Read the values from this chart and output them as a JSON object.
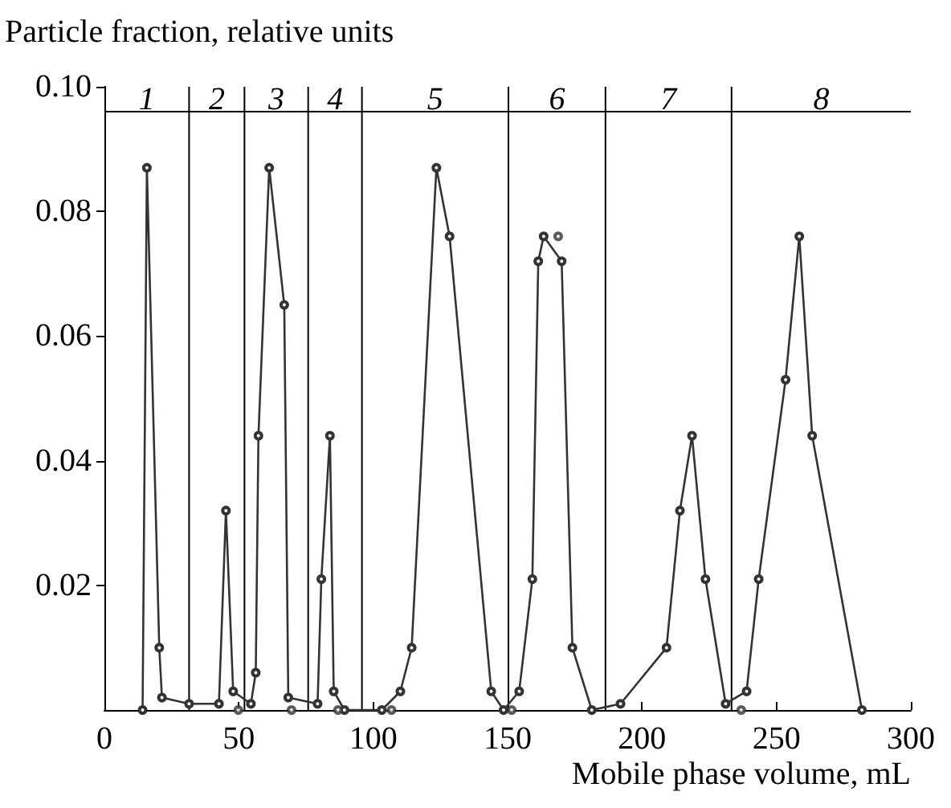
{
  "chart_data": {
    "type": "line",
    "xlabel": "Mobile phase volume, mL",
    "ylabel": "Particle fraction, relative units",
    "xlim": [
      0,
      300
    ],
    "xticks": [
      0,
      50,
      100,
      150,
      200,
      250,
      300
    ],
    "ylim": [
      0,
      0.1
    ],
    "yticks": [
      0.02,
      0.04,
      0.06,
      0.08,
      {
        "value": 0.1,
        "label": "0.10"
      }
    ],
    "marker": "circle",
    "line_style": "solid",
    "series": [
      {
        "color": "#333333",
        "x": [
          14.2,
          15.8,
          20.4,
          21.4,
          31.5,
          42.6,
          45.2,
          47.9,
          54.5,
          56.3,
          57.3,
          61.3,
          66.9,
          68.4,
          79.3,
          80.7,
          83.9,
          85.3,
          89.3,
          103.2,
          110.1,
          114.3,
          123.5,
          128.4,
          143.9,
          148.5,
          154.3,
          159.2,
          161.4,
          163.4,
          170.1,
          174.1,
          181.3,
          192.0,
          209.1,
          214.1,
          218.6,
          223.6,
          231.1,
          238.9,
          243.4,
          253.4,
          258.5,
          263.3,
          281.8
        ],
        "values": [
          0,
          0.087,
          0.01,
          0.002,
          0.001,
          0.001,
          0.032,
          0.003,
          0.001,
          0.006,
          0.044,
          0.087,
          0.065,
          0.002,
          0.001,
          0.021,
          0.044,
          0.003,
          0,
          0,
          0.003,
          0.01,
          0.087,
          0.076,
          0.003,
          0,
          0.003,
          0.021,
          0.072,
          0.076,
          0.072,
          0.01,
          0,
          0.001,
          0.01,
          0.032,
          0.044,
          0.021,
          0.001,
          0.003,
          0.021,
          0.053,
          0.076,
          0.044,
          0
        ]
      },
      {
        "type": "scatter",
        "color": "#333333",
        "x": [
          49.8,
          69.6,
          86.9,
          106.8,
          151.5,
          168.8,
          236.9
        ],
        "values": [
          0,
          0,
          0,
          0,
          0,
          0.076,
          0
        ]
      }
    ],
    "ref_lines": [
      {
        "axis": "x",
        "value": 31.5
      },
      {
        "axis": "x",
        "value": 52.1
      },
      {
        "axis": "x",
        "value": 75.8
      },
      {
        "axis": "x",
        "value": 95.8
      },
      {
        "axis": "x",
        "value": 150.3
      },
      {
        "axis": "x",
        "value": 186.4
      },
      {
        "axis": "x",
        "value": 233.3
      },
      {
        "axis": "y",
        "value": 0.096
      }
    ],
    "annotations": [
      "1",
      "2",
      "3",
      "4",
      "5",
      "6",
      "7",
      "8"
    ]
  }
}
